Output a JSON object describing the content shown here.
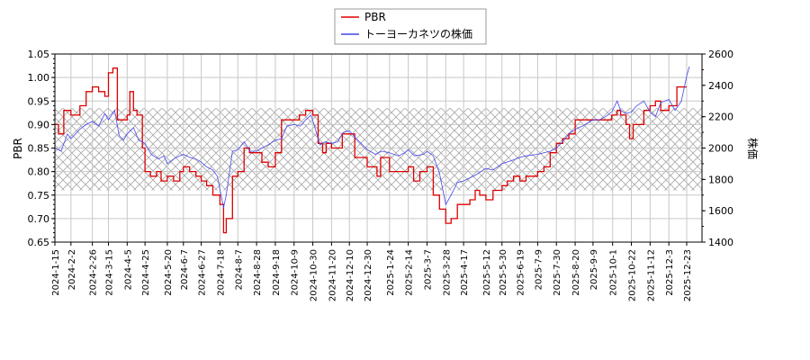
{
  "chart_data": {
    "type": "line",
    "title": "",
    "xlabel": "",
    "ylabel": "PBR",
    "ylabel_right": "株価",
    "ylim": [
      0.65,
      1.05
    ],
    "ylim_right": [
      1400,
      2600
    ],
    "yticks": [
      "0.65",
      "0.70",
      "0.75",
      "0.80",
      "0.85",
      "0.90",
      "0.95",
      "1.00",
      "1.05"
    ],
    "yticks_right": [
      "1400",
      "1600",
      "1800",
      "2000",
      "2200",
      "2400",
      "2600"
    ],
    "xticks": [
      "2024-1-15",
      "2024-2-2",
      "2024-2-26",
      "2024-3-15",
      "2024-4-5",
      "2024-4-25",
      "2024-5-20",
      "2024-6-7",
      "2024-6-27",
      "2024-7-18",
      "2024-8-7",
      "2024-8-28",
      "2024-9-18",
      "2024-10-9",
      "2024-10-30",
      "2024-11-20",
      "2024-12-10",
      "2024-12-30",
      "2025-1-24",
      "2025-2-14",
      "2025-3-7",
      "2025-3-28",
      "2025-4-17",
      "2025-5-12",
      "2025-5-30",
      "2025-6-19",
      "2025-7-9",
      "2025-7-30",
      "2025-8-20",
      "2025-9-9",
      "2025-10-1",
      "2025-10-22",
      "2025-11-12",
      "2025-12-3",
      "2025-12-23"
    ],
    "grid": true,
    "legend_position": "upper center",
    "shaded_band": {
      "pbr_from": 0.76,
      "pbr_to": 0.935,
      "style": "cross-hatch"
    },
    "series": [
      {
        "name": "PBR",
        "color": "#dd0000",
        "axis": "left",
        "step": true,
        "points": [
          [
            "2024-1-15",
            0.9
          ],
          [
            "2024-1-19",
            0.88
          ],
          [
            "2024-1-25",
            0.93
          ],
          [
            "2024-2-2",
            0.92
          ],
          [
            "2024-2-12",
            0.94
          ],
          [
            "2024-2-19",
            0.97
          ],
          [
            "2024-2-26",
            0.98
          ],
          [
            "2024-3-4",
            0.97
          ],
          [
            "2024-3-11",
            0.96
          ],
          [
            "2024-3-15",
            1.01
          ],
          [
            "2024-3-20",
            1.02
          ],
          [
            "2024-3-25",
            0.91
          ],
          [
            "2024-4-5",
            0.92
          ],
          [
            "2024-4-8",
            0.97
          ],
          [
            "2024-4-12",
            0.93
          ],
          [
            "2024-4-16",
            0.92
          ],
          [
            "2024-4-22",
            0.85
          ],
          [
            "2024-4-25",
            0.8
          ],
          [
            "2024-5-1",
            0.79
          ],
          [
            "2024-5-8",
            0.8
          ],
          [
            "2024-5-13",
            0.78
          ],
          [
            "2024-5-20",
            0.79
          ],
          [
            "2024-5-27",
            0.78
          ],
          [
            "2024-6-3",
            0.8
          ],
          [
            "2024-6-7",
            0.81
          ],
          [
            "2024-6-14",
            0.8
          ],
          [
            "2024-6-21",
            0.79
          ],
          [
            "2024-6-27",
            0.78
          ],
          [
            "2024-7-3",
            0.77
          ],
          [
            "2024-7-10",
            0.75
          ],
          [
            "2024-7-18",
            0.73
          ],
          [
            "2024-7-22",
            0.67
          ],
          [
            "2024-7-25",
            0.7
          ],
          [
            "2024-8-1",
            0.79
          ],
          [
            "2024-8-7",
            0.8
          ],
          [
            "2024-8-14",
            0.85
          ],
          [
            "2024-8-20",
            0.84
          ],
          [
            "2024-8-28",
            0.84
          ],
          [
            "2024-9-3",
            0.82
          ],
          [
            "2024-9-10",
            0.81
          ],
          [
            "2024-9-18",
            0.84
          ],
          [
            "2024-9-25",
            0.91
          ],
          [
            "2024-10-9",
            0.91
          ],
          [
            "2024-10-15",
            0.92
          ],
          [
            "2024-10-22",
            0.93
          ],
          [
            "2024-10-30",
            0.92
          ],
          [
            "2024-11-5",
            0.86
          ],
          [
            "2024-11-10",
            0.84
          ],
          [
            "2024-11-14",
            0.86
          ],
          [
            "2024-11-20",
            0.85
          ],
          [
            "2024-12-2",
            0.88
          ],
          [
            "2024-12-10",
            0.88
          ],
          [
            "2024-12-16",
            0.83
          ],
          [
            "2024-12-23",
            0.83
          ],
          [
            "2024-12-30",
            0.81
          ],
          [
            "2025-1-10",
            0.79
          ],
          [
            "2025-1-14",
            0.83
          ],
          [
            "2025-1-24",
            0.8
          ],
          [
            "2025-2-3",
            0.8
          ],
          [
            "2025-2-14",
            0.81
          ],
          [
            "2025-2-20",
            0.78
          ],
          [
            "2025-2-27",
            0.8
          ],
          [
            "2025-3-7",
            0.81
          ],
          [
            "2025-3-14",
            0.75
          ],
          [
            "2025-3-21",
            0.72
          ],
          [
            "2025-3-28",
            0.69
          ],
          [
            "2025-4-3",
            0.7
          ],
          [
            "2025-4-10",
            0.73
          ],
          [
            "2025-4-17",
            0.73
          ],
          [
            "2025-4-24",
            0.74
          ],
          [
            "2025-4-30",
            0.76
          ],
          [
            "2025-5-5",
            0.75
          ],
          [
            "2025-5-12",
            0.74
          ],
          [
            "2025-5-20",
            0.76
          ],
          [
            "2025-5-30",
            0.77
          ],
          [
            "2025-6-5",
            0.78
          ],
          [
            "2025-6-12",
            0.79
          ],
          [
            "2025-6-19",
            0.78
          ],
          [
            "2025-6-26",
            0.79
          ],
          [
            "2025-7-9",
            0.8
          ],
          [
            "2025-7-16",
            0.81
          ],
          [
            "2025-7-23",
            0.84
          ],
          [
            "2025-7-30",
            0.86
          ],
          [
            "2025-8-6",
            0.87
          ],
          [
            "2025-8-13",
            0.88
          ],
          [
            "2025-8-20",
            0.91
          ],
          [
            "2025-9-9",
            0.91
          ],
          [
            "2025-9-16",
            0.91
          ],
          [
            "2025-9-30",
            0.92
          ],
          [
            "2025-10-6",
            0.93
          ],
          [
            "2025-10-10",
            0.92
          ],
          [
            "2025-10-16",
            0.9
          ],
          [
            "2025-10-20",
            0.87
          ],
          [
            "2025-10-24",
            0.9
          ],
          [
            "2025-11-5",
            0.93
          ],
          [
            "2025-11-12",
            0.94
          ],
          [
            "2025-11-18",
            0.95
          ],
          [
            "2025-11-24",
            0.93
          ],
          [
            "2025-12-3",
            0.94
          ],
          [
            "2025-12-12",
            0.98
          ],
          [
            "2025-12-23",
            0.98
          ]
        ]
      },
      {
        "name": "トーヨーカネツの株価",
        "color": "#4444ee",
        "axis": "right",
        "step": false,
        "points": [
          [
            "2024-1-15",
            2000
          ],
          [
            "2024-1-22",
            1980
          ],
          [
            "2024-1-29",
            2090
          ],
          [
            "2024-2-2",
            2060
          ],
          [
            "2024-2-12",
            2120
          ],
          [
            "2024-2-19",
            2150
          ],
          [
            "2024-2-26",
            2170
          ],
          [
            "2024-3-4",
            2140
          ],
          [
            "2024-3-11",
            2220
          ],
          [
            "2024-3-15",
            2180
          ],
          [
            "2024-3-22",
            2240
          ],
          [
            "2024-3-27",
            2080
          ],
          [
            "2024-4-1",
            2050
          ],
          [
            "2024-4-5",
            2090
          ],
          [
            "2024-4-12",
            2130
          ],
          [
            "2024-4-18",
            2050
          ],
          [
            "2024-4-25",
            2030
          ],
          [
            "2024-5-2",
            1960
          ],
          [
            "2024-5-10",
            1930
          ],
          [
            "2024-5-16",
            1950
          ],
          [
            "2024-5-20",
            1900
          ],
          [
            "2024-5-27",
            1930
          ],
          [
            "2024-6-3",
            1950
          ],
          [
            "2024-6-7",
            1960
          ],
          [
            "2024-6-14",
            1940
          ],
          [
            "2024-6-21",
            1930
          ],
          [
            "2024-6-27",
            1910
          ],
          [
            "2024-7-3",
            1880
          ],
          [
            "2024-7-10",
            1860
          ],
          [
            "2024-7-15",
            1820
          ],
          [
            "2024-7-22",
            1620
          ],
          [
            "2024-7-25",
            1700
          ],
          [
            "2024-8-1",
            1980
          ],
          [
            "2024-8-7",
            1990
          ],
          [
            "2024-8-14",
            2040
          ],
          [
            "2024-8-21",
            1980
          ],
          [
            "2024-8-28",
            1980
          ],
          [
            "2024-9-3",
            2000
          ],
          [
            "2024-9-10",
            2020
          ],
          [
            "2024-9-18",
            2050
          ],
          [
            "2024-9-25",
            2060
          ],
          [
            "2024-10-1",
            2140
          ],
          [
            "2024-10-9",
            2150
          ],
          [
            "2024-10-16",
            2140
          ],
          [
            "2024-10-22",
            2180
          ],
          [
            "2024-10-28",
            2210
          ],
          [
            "2024-11-1",
            2140
          ],
          [
            "2024-11-7",
            2020
          ],
          [
            "2024-11-13",
            2040
          ],
          [
            "2024-11-20",
            2030
          ],
          [
            "2024-11-27",
            2040
          ],
          [
            "2024-12-3",
            2100
          ],
          [
            "2024-12-10",
            2110
          ],
          [
            "2024-12-16",
            2070
          ],
          [
            "2024-12-23",
            2030
          ],
          [
            "2024-12-30",
            1990
          ],
          [
            "2025-1-8",
            1960
          ],
          [
            "2025-1-15",
            1980
          ],
          [
            "2025-1-24",
            1970
          ],
          [
            "2025-2-3",
            1950
          ],
          [
            "2025-2-10",
            1970
          ],
          [
            "2025-2-14",
            1990
          ],
          [
            "2025-2-21",
            1950
          ],
          [
            "2025-3-3",
            1960
          ],
          [
            "2025-3-7",
            1980
          ],
          [
            "2025-3-14",
            1950
          ],
          [
            "2025-3-21",
            1840
          ],
          [
            "2025-3-28",
            1640
          ],
          [
            "2025-4-3",
            1700
          ],
          [
            "2025-4-10",
            1780
          ],
          [
            "2025-4-17",
            1790
          ],
          [
            "2025-4-24",
            1810
          ],
          [
            "2025-5-1",
            1830
          ],
          [
            "2025-5-12",
            1870
          ],
          [
            "2025-5-20",
            1860
          ],
          [
            "2025-5-30",
            1900
          ],
          [
            "2025-6-10",
            1920
          ],
          [
            "2025-6-19",
            1940
          ],
          [
            "2025-6-26",
            1950
          ],
          [
            "2025-7-9",
            1960
          ],
          [
            "2025-7-16",
            1970
          ],
          [
            "2025-7-23",
            1980
          ],
          [
            "2025-7-30",
            2000
          ],
          [
            "2025-8-6",
            2040
          ],
          [
            "2025-8-13",
            2090
          ],
          [
            "2025-8-20",
            2120
          ],
          [
            "2025-8-28",
            2140
          ],
          [
            "2025-9-9",
            2180
          ],
          [
            "2025-9-16",
            2180
          ],
          [
            "2025-9-23",
            2200
          ],
          [
            "2025-9-30",
            2230
          ],
          [
            "2025-10-6",
            2300
          ],
          [
            "2025-10-10",
            2240
          ],
          [
            "2025-10-16",
            2220
          ],
          [
            "2025-10-22",
            2230
          ],
          [
            "2025-10-28",
            2270
          ],
          [
            "2025-11-5",
            2300
          ],
          [
            "2025-11-12",
            2230
          ],
          [
            "2025-11-18",
            2200
          ],
          [
            "2025-11-24",
            2290
          ],
          [
            "2025-12-3",
            2310
          ],
          [
            "2025-12-10",
            2240
          ],
          [
            "2025-12-17",
            2300
          ],
          [
            "2025-12-23",
            2460
          ],
          [
            "2025-12-26",
            2520
          ]
        ]
      }
    ]
  },
  "legend": {
    "items": [
      {
        "label": "PBR",
        "color": "#dd0000"
      },
      {
        "label": "トーヨーカネツの株価",
        "color": "#4444ee"
      }
    ]
  }
}
